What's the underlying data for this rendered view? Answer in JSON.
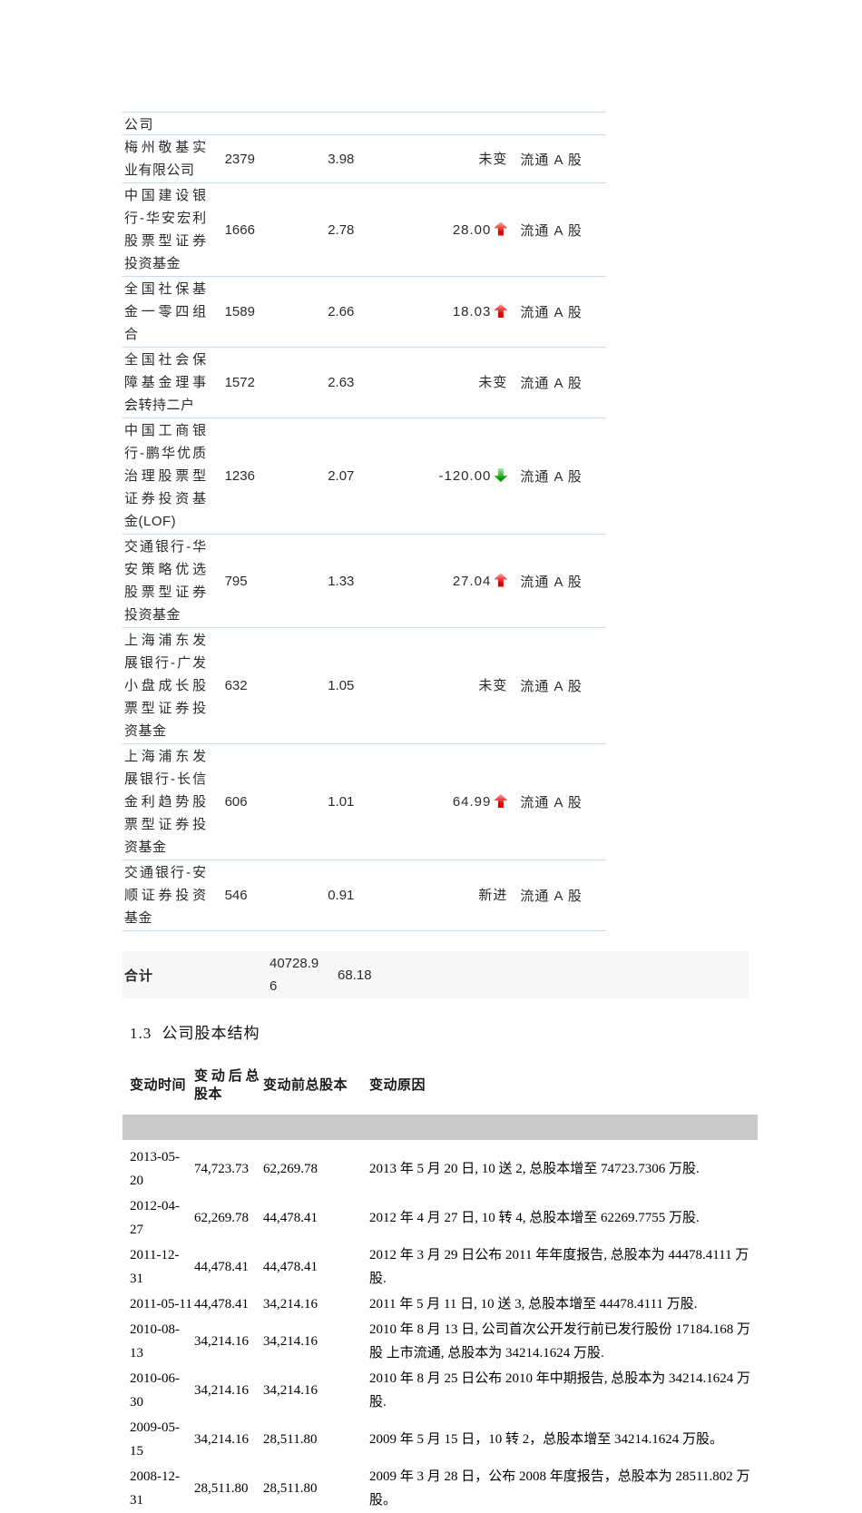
{
  "colors": {
    "accent_red": "#dd0000",
    "accent_green": "#009900",
    "divider": "#ccd9e8",
    "total_row_bg": "#f7f7f7",
    "header_bar_bg": "#c9c9c9"
  },
  "shareholders_table": {
    "partial_row_text": "公司",
    "rows": [
      {
        "name": "梅州敬基实业有限公司",
        "qty": "2379",
        "pct": "3.98",
        "change": "未变",
        "arrow": "",
        "type": "流通 A 股"
      },
      {
        "name": "中国建设银行-华安宏利股票型证券投资基金",
        "qty": "1666",
        "pct": "2.78",
        "change": "28.00",
        "arrow": "up",
        "type": "流通 A 股"
      },
      {
        "name": "全国社保基金一零四组合",
        "qty": "1589",
        "pct": "2.66",
        "change": "18.03",
        "arrow": "up",
        "type": "流通 A 股"
      },
      {
        "name": "全国社会保障基金理事会转持二户",
        "qty": "1572",
        "pct": "2.63",
        "change": "未变",
        "arrow": "",
        "type": "流通 A 股"
      },
      {
        "name": "中国工商银行-鹏华优质治理股票型证券投资基金(LOF)",
        "qty": "1236",
        "pct": "2.07",
        "change": "-120.00",
        "arrow": "down",
        "type": "流通 A 股"
      },
      {
        "name": "交通银行-华安策略优选股票型证券投资基金",
        "qty": "795",
        "pct": "1.33",
        "change": "27.04",
        "arrow": "up",
        "type": "流通 A 股"
      },
      {
        "name": "上海浦东发展银行-广发小盘成长股票型证券投资基金",
        "qty": "632",
        "pct": "1.05",
        "change": "未变",
        "arrow": "",
        "type": "流通 A 股"
      },
      {
        "name": "上海浦东发展银行-长信金利趋势股票型证券投资基金",
        "qty": "606",
        "pct": "1.01",
        "change": "64.99",
        "arrow": "up",
        "type": "流通 A 股"
      },
      {
        "name": "交通银行-安顺证券投资基金",
        "qty": "546",
        "pct": "0.91",
        "change": "新进",
        "arrow": "",
        "type": "流通 A 股"
      }
    ],
    "total": {
      "label": "合计",
      "total_qty": "40728.96",
      "total_pct": "68.18"
    }
  },
  "section": {
    "title": "1.3 公司股本结构"
  },
  "capital_structure_table": {
    "headers": {
      "date": "变动时间",
      "after": "变动后总股本",
      "before": "变动前总股本",
      "reason": "变动原因"
    },
    "rows": [
      {
        "date": "2013-05-20",
        "after": "74,723.73",
        "before": "62,269.78",
        "reason": "2013 年 5 月 20 日, 10 送 2, 总股本增至 74723.7306 万股."
      },
      {
        "date": "2012-04-27",
        "after": "62,269.78",
        "before": "44,478.41",
        "reason": "2012 年 4 月 27 日, 10 转 4, 总股本增至 62269.7755 万股."
      },
      {
        "date": "2011-12-31",
        "after": "44,478.41",
        "before": "44,478.41",
        "reason": "2012 年 3 月 29 日公布 2011 年年度报告, 总股本为 44478.4111 万股."
      },
      {
        "date": "2011-05-11",
        "after": "44,478.41",
        "before": "34,214.16",
        "reason": "2011 年 5 月 11 日, 10 送 3, 总股本增至 44478.4111 万股."
      },
      {
        "date": "2010-08-13",
        "after": "34,214.16",
        "before": "34,214.16",
        "reason": "2010 年 8 月 13 日, 公司首次公开发行前已发行股份 17184.168 万股 上市流通, 总股本为 34214.1624 万股."
      },
      {
        "date": "2010-06-30",
        "after": "34,214.16",
        "before": "34,214.16",
        "reason": "2010 年 8 月 25 日公布 2010 年中期报告, 总股本为 34214.1624 万股."
      },
      {
        "date": "2009-05-15",
        "after": "34,214.16",
        "before": "28,511.80",
        "reason": "2009 年 5 月 15 日，10 转 2，总股本增至 34214.1624 万股。"
      },
      {
        "date": "2008-12-31",
        "after": "28,511.80",
        "before": "28,511.80",
        "reason": "2009 年 3 月 28 日，公布 2008 年度报告，总股本为 28511.802 万股。"
      }
    ]
  }
}
